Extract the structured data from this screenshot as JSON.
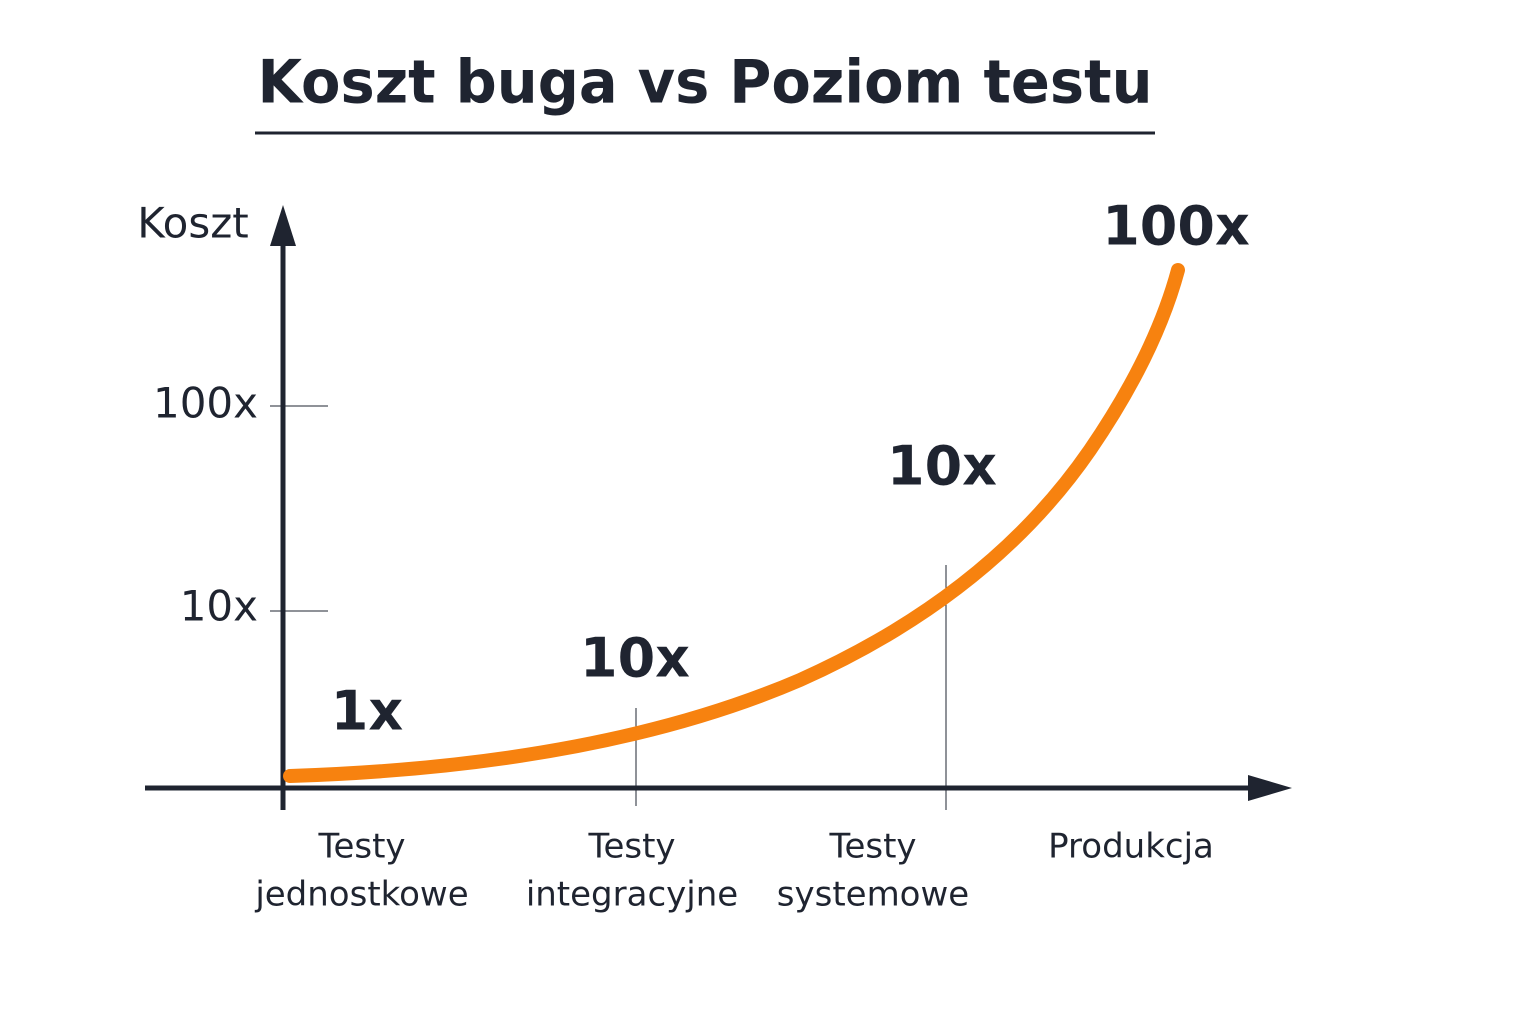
{
  "title": "Koszt buga vs Poziom testu",
  "y_axis": {
    "label": "Koszt",
    "ticks": [
      "100x",
      "10x"
    ]
  },
  "x_axis": {
    "categories": [
      [
        "Testy",
        "jednostkowe"
      ],
      [
        "Testy",
        "integracyjne"
      ],
      [
        "Testy",
        "systemowe"
      ],
      [
        "Produkcja"
      ]
    ]
  },
  "point_labels": [
    "1x",
    "10x",
    "10x",
    "100x"
  ]
}
